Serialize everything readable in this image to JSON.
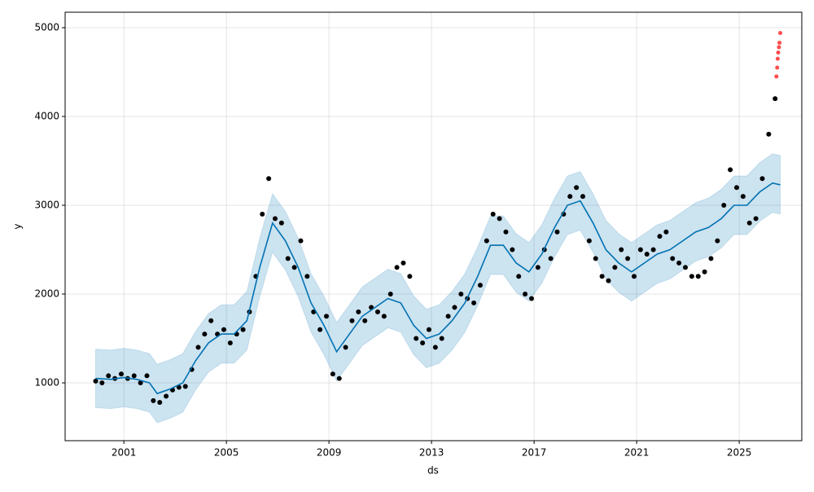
{
  "chart_data": {
    "type": "forecast",
    "x_label": "ds",
    "y_label": "y",
    "xlim": [
      1998.71,
      2027.44
    ],
    "ylim": [
      349,
      5174
    ],
    "xticks": [
      2001,
      2005,
      2009,
      2013,
      2017,
      2021,
      2025
    ],
    "yticks": [
      1000,
      2000,
      3000,
      4000,
      5000
    ],
    "grid": true,
    "observed": {
      "color": "#000000",
      "x": [
        1999.9,
        2000.15,
        2000.4,
        2000.65,
        2000.9,
        2001.15,
        2001.4,
        2001.65,
        2001.9,
        2002.15,
        2002.4,
        2002.65,
        2002.9,
        2003.15,
        2003.4,
        2003.65,
        2003.9,
        2004.15,
        2004.4,
        2004.65,
        2004.9,
        2005.15,
        2005.4,
        2005.65,
        2005.9,
        2006.15,
        2006.4,
        2006.65,
        2006.9,
        2007.15,
        2007.4,
        2007.65,
        2007.9,
        2008.15,
        2008.4,
        2008.65,
        2008.9,
        2009.15,
        2009.4,
        2009.65,
        2009.9,
        2010.15,
        2010.4,
        2010.65,
        2010.9,
        2011.15,
        2011.4,
        2011.65,
        2011.9,
        2012.15,
        2012.4,
        2012.65,
        2012.9,
        2013.15,
        2013.4,
        2013.65,
        2013.9,
        2014.15,
        2014.4,
        2014.65,
        2014.9,
        2015.15,
        2015.4,
        2015.65,
        2015.9,
        2016.15,
        2016.4,
        2016.65,
        2016.9,
        2017.15,
        2017.4,
        2017.65,
        2017.9,
        2018.15,
        2018.4,
        2018.65,
        2018.9,
        2019.15,
        2019.4,
        2019.65,
        2019.9,
        2020.15,
        2020.4,
        2020.65,
        2020.9,
        2021.15,
        2021.4,
        2021.65,
        2021.9,
        2022.15,
        2022.4,
        2022.65,
        2022.9,
        2023.15,
        2023.4,
        2023.65,
        2023.9,
        2024.15,
        2024.4,
        2024.65,
        2024.9,
        2025.15,
        2025.4,
        2025.65,
        2025.9,
        2026.15,
        2026.4
      ],
      "y": [
        1020,
        1000,
        1080,
        1050,
        1100,
        1050,
        1080,
        1000,
        1080,
        800,
        780,
        850,
        920,
        950,
        960,
        1150,
        1400,
        1550,
        1700,
        1550,
        1600,
        1450,
        1550,
        1600,
        1800,
        2200,
        2900,
        3300,
        2850,
        2800,
        2400,
        2300,
        2600,
        2200,
        1800,
        1600,
        1750,
        1100,
        1050,
        1400,
        1700,
        1800,
        1700,
        1850,
        1800,
        1750,
        2000,
        2300,
        2350,
        2200,
        1500,
        1450,
        1600,
        1400,
        1500,
        1750,
        1850,
        2000,
        1950,
        1900,
        2100,
        2600,
        2900,
        2850,
        2700,
        2500,
        2200,
        2000,
        1950,
        2300,
        2500,
        2400,
        2700,
        2900,
        3100,
        3200,
        3100,
        2600,
        2400,
        2200,
        2150,
        2300,
        2500,
        2400,
        2200,
        2500,
        2450,
        2500,
        2650,
        2700,
        2400,
        2350,
        2300,
        2200,
        2200,
        2250,
        2400,
        2600,
        3000,
        3400,
        3200,
        3100,
        2800,
        2850,
        3300,
        3800,
        4200
      ]
    },
    "outliers": {
      "color": "#ff0000",
      "x": [
        2026.45,
        2026.48,
        2026.5,
        2026.52,
        2026.55,
        2026.57,
        2026.6
      ],
      "y": [
        4450,
        4550,
        4650,
        4720,
        4780,
        4830,
        4940
      ]
    },
    "forecast": {
      "color": "#0072b2",
      "x": [
        1999.9,
        2000.5,
        2001.0,
        2001.5,
        2002.0,
        2002.3,
        2002.8,
        2003.3,
        2003.8,
        2004.3,
        2004.8,
        2005.3,
        2005.8,
        2006.3,
        2006.8,
        2007.3,
        2007.8,
        2008.3,
        2008.8,
        2009.3,
        2009.8,
        2010.3,
        2010.8,
        2011.3,
        2011.8,
        2012.3,
        2012.8,
        2013.3,
        2013.8,
        2014.3,
        2014.8,
        2015.3,
        2015.8,
        2016.3,
        2016.8,
        2017.3,
        2017.8,
        2018.3,
        2018.8,
        2019.3,
        2019.8,
        2020.3,
        2020.8,
        2021.3,
        2021.8,
        2022.3,
        2022.8,
        2023.3,
        2023.8,
        2024.3,
        2024.8,
        2025.3,
        2025.8,
        2026.3,
        2026.6
      ],
      "yhat": [
        1050,
        1040,
        1060,
        1040,
        1000,
        880,
        930,
        1000,
        1250,
        1450,
        1550,
        1550,
        1700,
        2300,
        2800,
        2600,
        2300,
        1900,
        1650,
        1350,
        1550,
        1750,
        1850,
        1950,
        1900,
        1650,
        1500,
        1550,
        1700,
        1900,
        2200,
        2550,
        2550,
        2350,
        2250,
        2450,
        2750,
        3000,
        3050,
        2800,
        2500,
        2350,
        2250,
        2350,
        2450,
        2500,
        2600,
        2700,
        2750,
        2850,
        3000,
        3000,
        3150,
        3250,
        3230
      ],
      "yhat_lower": [
        720,
        710,
        730,
        710,
        670,
        550,
        600,
        670,
        920,
        1120,
        1220,
        1220,
        1370,
        1970,
        2470,
        2270,
        1970,
        1570,
        1320,
        1020,
        1220,
        1420,
        1520,
        1620,
        1570,
        1320,
        1170,
        1220,
        1370,
        1570,
        1870,
        2220,
        2220,
        2020,
        1920,
        2120,
        2420,
        2670,
        2720,
        2470,
        2170,
        2020,
        1920,
        2020,
        2120,
        2170,
        2270,
        2370,
        2420,
        2520,
        2670,
        2670,
        2820,
        2920,
        2900
      ],
      "yhat_upper": [
        1380,
        1370,
        1390,
        1370,
        1330,
        1210,
        1260,
        1330,
        1580,
        1780,
        1880,
        1880,
        2030,
        2630,
        3130,
        2930,
        2630,
        2230,
        1980,
        1680,
        1880,
        2080,
        2180,
        2280,
        2230,
        1980,
        1830,
        1880,
        2030,
        2230,
        2530,
        2880,
        2880,
        2680,
        2580,
        2780,
        3080,
        3330,
        3380,
        3130,
        2830,
        2680,
        2580,
        2680,
        2780,
        2830,
        2930,
        3030,
        3080,
        3180,
        3330,
        3330,
        3480,
        3580,
        3560
      ]
    }
  }
}
